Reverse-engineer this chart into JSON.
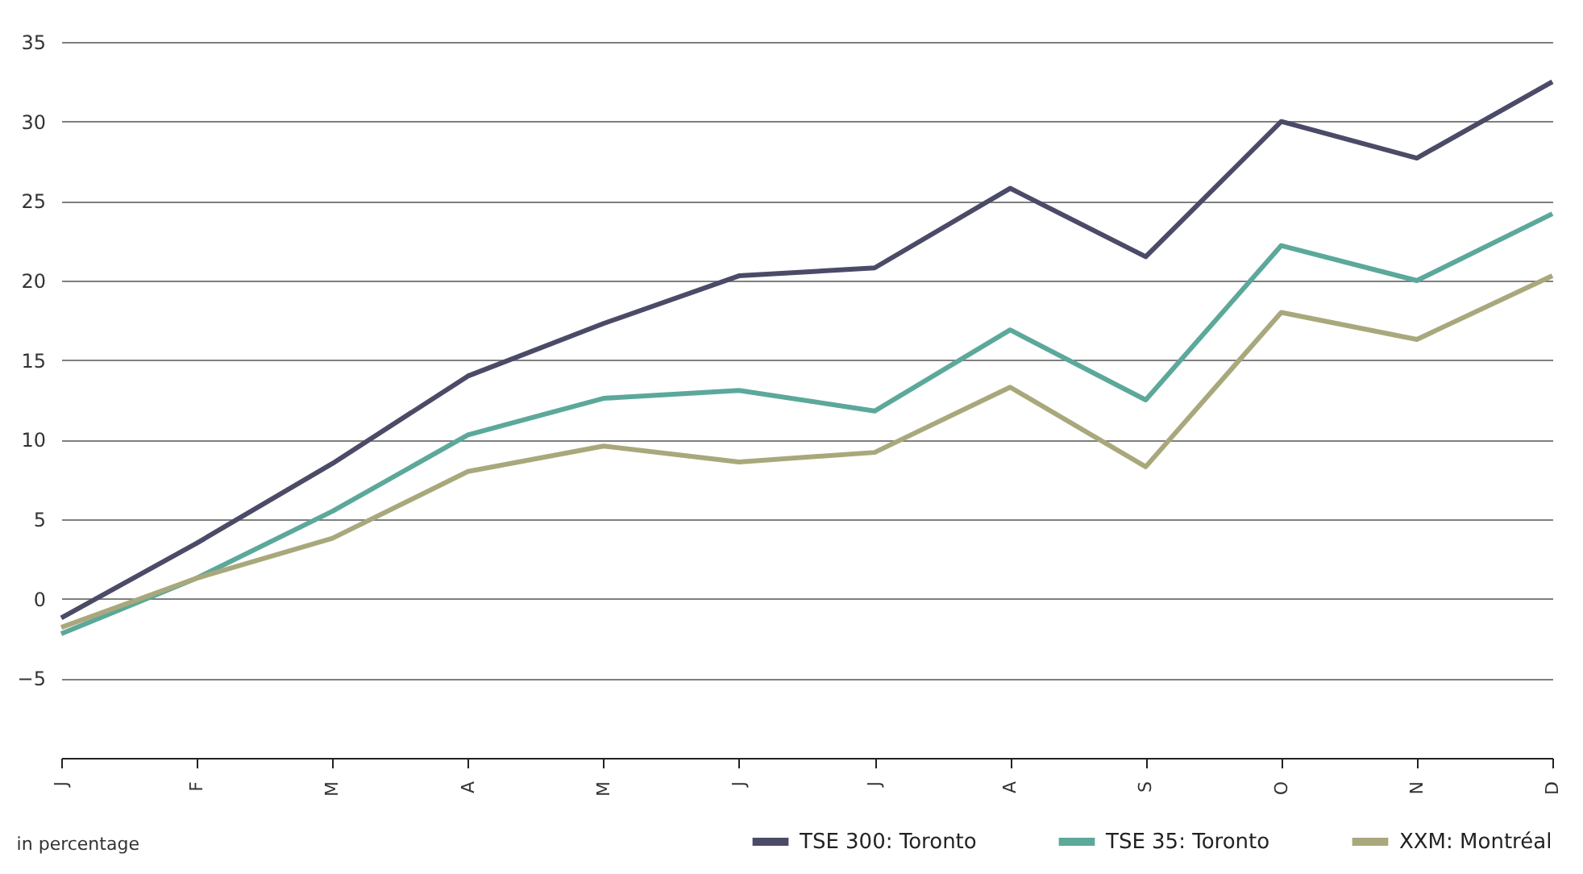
{
  "chart_data": {
    "type": "line",
    "categories": [
      "J",
      "F",
      "M",
      "A",
      "M",
      "J",
      "J",
      "A",
      "S",
      "O",
      "N",
      "D"
    ],
    "series": [
      {
        "name": "TSE 300: Toronto",
        "color": "#4b4b68",
        "values": [
          -1.2,
          3.5,
          8.5,
          14,
          17.3,
          20.3,
          20.8,
          25.8,
          21.5,
          30,
          27.7,
          32.5
        ]
      },
      {
        "name": "TSE 35: Toronto",
        "color": "#5ca89a",
        "values": [
          -2.2,
          1.3,
          5.5,
          10.3,
          12.6,
          13.1,
          11.8,
          16.9,
          12.5,
          22.2,
          20,
          24.2
        ]
      },
      {
        "name": "XXM: Montréal",
        "color": "#a9a87c",
        "values": [
          -1.8,
          1.3,
          3.8,
          8,
          9.6,
          8.6,
          9.2,
          13.3,
          8.3,
          18,
          16.3,
          20.3
        ]
      }
    ],
    "ylim": [
      -10,
      35
    ],
    "yticks": [
      -5,
      0,
      5,
      10,
      15,
      20,
      25,
      30,
      35
    ],
    "grid": "y",
    "legend": "bottom",
    "marker": "none",
    "line_style": "solid",
    "annotations": [
      "in percentage"
    ]
  }
}
